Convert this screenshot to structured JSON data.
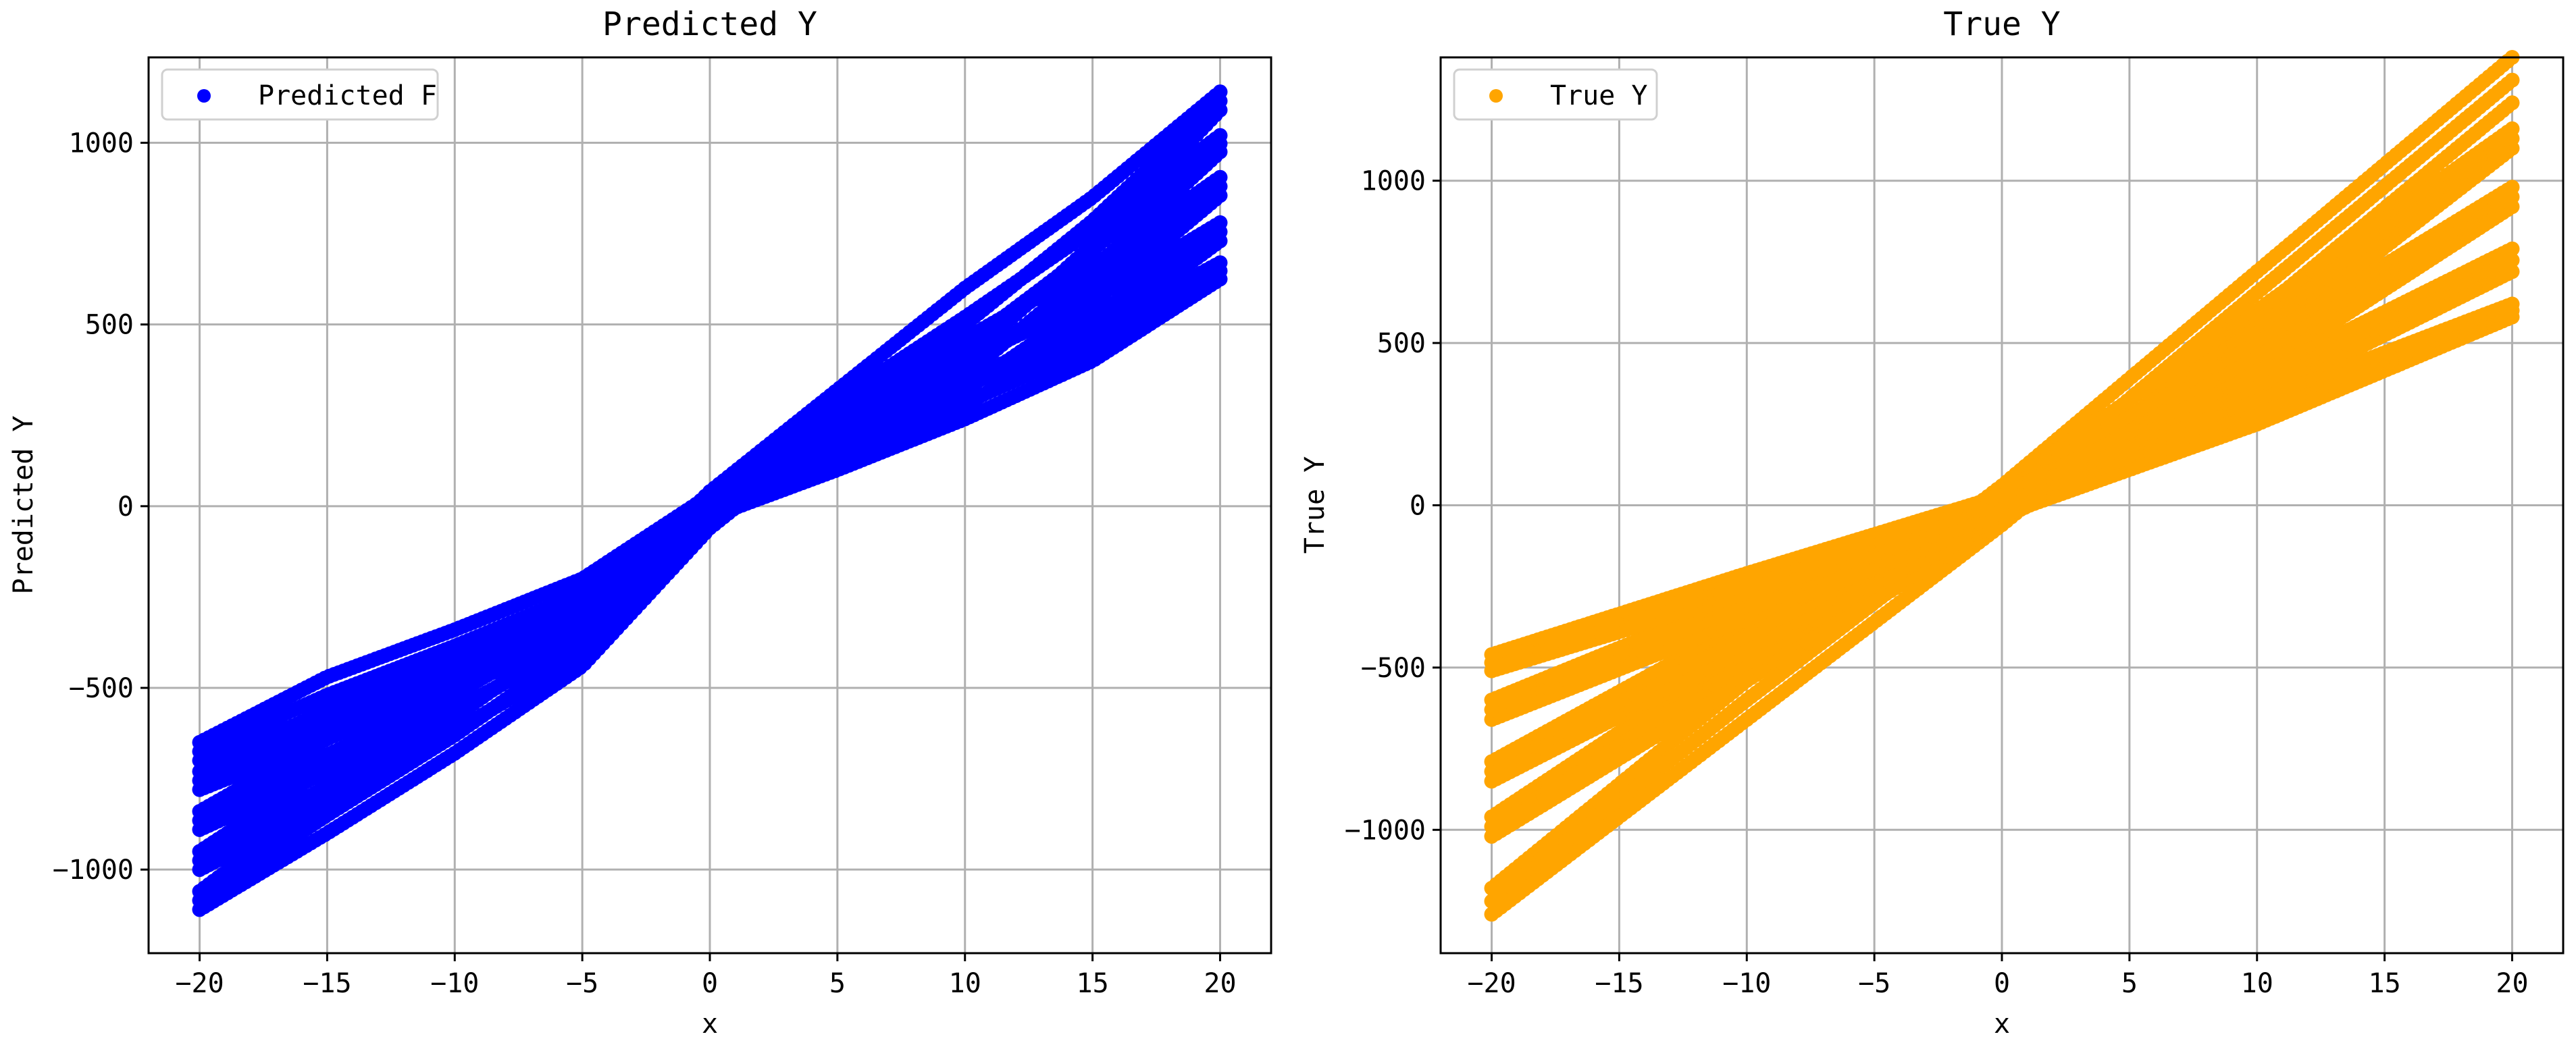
{
  "colors": {
    "predicted": "#0000ff",
    "true": "#ffa500",
    "grid": "#b0b0b0"
  },
  "chart_data": [
    {
      "type": "scatter",
      "title": "Predicted Y",
      "xlabel": "x",
      "ylabel": "Predicted Y",
      "xlim": [
        -22,
        22
      ],
      "ylim": [
        -1230,
        1235
      ],
      "xticks": [
        -20,
        -15,
        -10,
        -5,
        0,
        5,
        10,
        15,
        20
      ],
      "yticks": [
        -1000,
        -500,
        0,
        500,
        1000
      ],
      "tick_labels_x": [
        "−20",
        "−15",
        "−10",
        "−5",
        "0",
        "5",
        "10",
        "15",
        "20"
      ],
      "tick_labels_y": [
        "−1000",
        "−500",
        "0",
        "500",
        "1000"
      ],
      "grid": true,
      "legend_position": "top-left",
      "legend": [
        "Predicted F"
      ],
      "series": [
        {
          "name": "Predicted F",
          "color": "#0000ff",
          "bands": [
            {
              "x": [
                -20,
                -15,
                -10,
                -5,
                0,
                5,
                10,
                15,
                20
              ],
              "lower": [
                -1110,
                -900,
                -680,
                -440,
                -60,
                220,
                400,
                720,
                1090
              ],
              "upper": [
                -1060,
                -800,
                -580,
                -330,
                40,
                320,
                600,
                850,
                1140
              ]
            },
            {
              "x": [
                -20,
                -15,
                -10,
                -5,
                0,
                5,
                10,
                15,
                20
              ],
              "lower": [
                -1000,
                -820,
                -620,
                -410,
                -50,
                200,
                360,
                650,
                975
              ],
              "upper": [
                -950,
                -720,
                -520,
                -300,
                40,
                290,
                520,
                760,
                1020
              ]
            },
            {
              "x": [
                -20,
                -15,
                -10,
                -5,
                0,
                5,
                10,
                15,
                20
              ],
              "lower": [
                -890,
                -730,
                -560,
                -370,
                -45,
                170,
                320,
                560,
                855
              ],
              "upper": [
                -840,
                -640,
                -470,
                -270,
                35,
                260,
                460,
                660,
                905
              ]
            },
            {
              "x": [
                -20,
                -15,
                -10,
                -5,
                0,
                5,
                10,
                15,
                20
              ],
              "lower": [
                -780,
                -640,
                -490,
                -330,
                -40,
                140,
                280,
                470,
                730
              ],
              "upper": [
                -730,
                -560,
                -410,
                -240,
                35,
                230,
                400,
                570,
                780
              ]
            },
            {
              "x": [
                -20,
                -15,
                -10,
                -5,
                0,
                5,
                10,
                15,
                20
              ],
              "lower": [
                -700,
                -570,
                -430,
                -280,
                -30,
                100,
                240,
                400,
                625
              ],
              "upper": [
                -650,
                -470,
                -340,
                -200,
                30,
                180,
                330,
                480,
                670
              ]
            }
          ]
        }
      ]
    },
    {
      "type": "scatter",
      "title": "True Y",
      "xlabel": "x",
      "ylabel": "True Y",
      "xlim": [
        -22,
        22
      ],
      "ylim": [
        -1380,
        1380
      ],
      "xticks": [
        -20,
        -15,
        -10,
        -5,
        0,
        5,
        10,
        15,
        20
      ],
      "yticks": [
        -1000,
        -500,
        0,
        500,
        1000
      ],
      "tick_labels_x": [
        "−20",
        "−15",
        "−10",
        "−5",
        "0",
        "5",
        "10",
        "15",
        "20"
      ],
      "tick_labels_y": [
        "−1000",
        "−500",
        "0",
        "500",
        "1000"
      ],
      "grid": true,
      "legend_position": "top-left",
      "legend": [
        "True Y"
      ],
      "series": [
        {
          "name": "True Y",
          "color": "#ffa500",
          "bands": [
            {
              "x": [
                -20,
                -10,
                0,
                10,
                20
              ],
              "lower": [
                -1260,
                -660,
                -60,
                590,
                1240
              ],
              "upper": [
                -1180,
                -540,
                60,
                720,
                1380
              ]
            },
            {
              "x": [
                -20,
                -10,
                0,
                10,
                20
              ],
              "lower": [
                -1020,
                -540,
                -50,
                490,
                1100
              ],
              "upper": [
                -960,
                -440,
                50,
                600,
                1160
              ]
            },
            {
              "x": [
                -20,
                -10,
                0,
                10,
                20
              ],
              "lower": [
                -850,
                -450,
                -45,
                410,
                920
              ],
              "upper": [
                -790,
                -360,
                40,
                500,
                980
              ]
            },
            {
              "x": [
                -20,
                -10,
                0,
                10,
                20
              ],
              "lower": [
                -660,
                -350,
                -40,
                330,
                720
              ],
              "upper": [
                -600,
                -280,
                35,
                400,
                790
              ]
            },
            {
              "x": [
                -20,
                -10,
                0,
                10,
                20
              ],
              "lower": [
                -510,
                -270,
                -30,
                250,
                580
              ],
              "upper": [
                -460,
                -210,
                30,
                320,
                620
              ]
            }
          ]
        }
      ]
    }
  ]
}
